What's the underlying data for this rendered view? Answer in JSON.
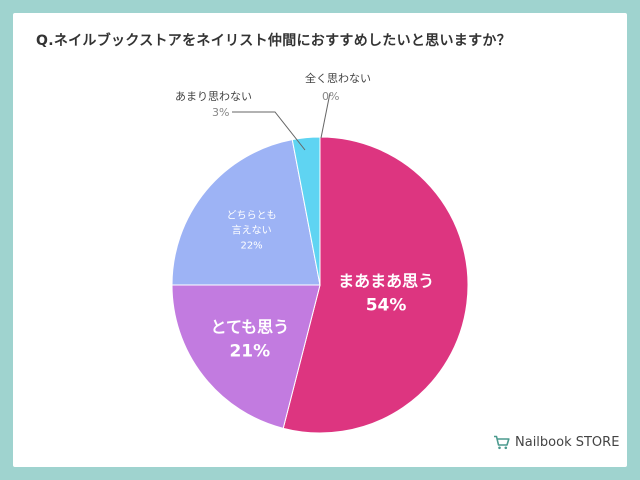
{
  "question": "Q.ネイルブックストアをネイリスト仲間におすすめしたいと思いますか？",
  "brand": {
    "name": "Nailbook STORE",
    "icon": "shopping-cart-icon"
  },
  "chart_data": {
    "type": "pie",
    "title": "Q.ネイルブックストアをネイリスト仲間におすすめしたいと思いますか？",
    "start": "12 o'clock",
    "direction": "clockwise",
    "slices": [
      {
        "label": "全く思わない",
        "value": 0,
        "display": "0%",
        "color": "#3da7d6"
      },
      {
        "label": "まあまあ思う",
        "value": 54,
        "display": "54%",
        "color": "#dd3580"
      },
      {
        "label": "とても思う",
        "value": 21,
        "display": "21%",
        "color": "#c27be0"
      },
      {
        "label": "どちらとも言えない",
        "value": 22,
        "display": "22%",
        "color": "#9db3f5",
        "label_lines": [
          "どちらとも",
          "言えない"
        ]
      },
      {
        "label": "あまり思わない",
        "value": 3,
        "display": "3%",
        "color": "#5fd4f2"
      }
    ]
  }
}
